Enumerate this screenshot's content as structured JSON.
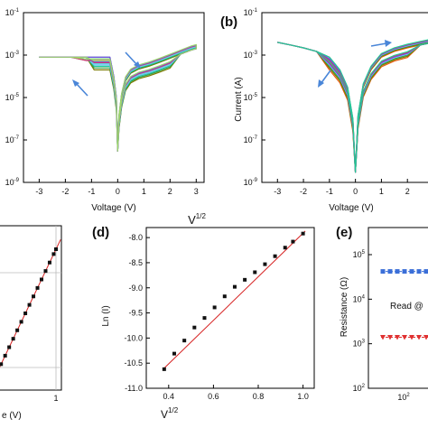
{
  "chart_data": [
    {
      "panel": "a",
      "type": "line",
      "x_scale": "linear",
      "y_scale": "log",
      "xlabel": "Voltage (V)",
      "ylabel": "",
      "xlim": [
        -3.6,
        3.3
      ],
      "ylim": [
        1e-09,
        0.1
      ],
      "xticks": [
        "-3",
        "-2",
        "-1",
        "0",
        "1",
        "2",
        "3"
      ],
      "yticks": [
        {
          "base": "10",
          "exp": "-1"
        },
        {
          "base": "10",
          "exp": "-3"
        },
        {
          "base": "10",
          "exp": "-5"
        },
        {
          "base": "10",
          "exp": "-7"
        },
        {
          "base": "10",
          "exp": "-9"
        }
      ],
      "series_colors": [
        "#7a7a00",
        "#2f9e44",
        "#20c997",
        "#74c0fc",
        "#5bd6e0",
        "#d6336c",
        "#7048e8",
        "#9cd66a"
      ],
      "sweep": {
        "x": [
          -3,
          -2.4,
          -1.8,
          -1.2,
          -0.9,
          -0.7,
          -0.5,
          -0.3,
          -0.15,
          -0.05,
          0,
          0.05,
          0.15,
          0.3,
          0.5,
          0.8,
          1.2,
          1.6,
          2,
          2.4,
          2.8,
          3
        ],
        "y": [
          0.0008,
          0.0008,
          0.0008,
          0.0008,
          0.0008,
          0.0008,
          0.0008,
          0.0008,
          0.0001,
          1e-05,
          3e-08,
          1e-06,
          1e-05,
          6e-05,
          0.00014,
          0.00022,
          0.0003,
          0.00045,
          0.0007,
          0.0011,
          0.0017,
          0.002
        ]
      },
      "annotations": [
        "arrow-blue-right",
        "arrow-blue-left"
      ]
    },
    {
      "panel": "b",
      "type": "line",
      "x_scale": "linear",
      "y_scale": "log",
      "xlabel": "Voltage (V)",
      "ylabel": "Current (A)",
      "xlim": [
        -3.6,
        3
      ],
      "ylim": [
        1e-09,
        0.1
      ],
      "xticks": [
        "-3",
        "-2",
        "-1",
        "0",
        "1",
        "2",
        "3"
      ],
      "yticks": [
        {
          "base": "10",
          "exp": "-1"
        },
        {
          "base": "10",
          "exp": "-3"
        },
        {
          "base": "10",
          "exp": "-5"
        },
        {
          "base": "10",
          "exp": "-7"
        },
        {
          "base": "10",
          "exp": "-9"
        }
      ],
      "series_colors": [
        "#e8590c",
        "#7a7a00",
        "#2f9e44",
        "#74c0fc",
        "#7048e8",
        "#d6336c",
        "#20c997"
      ],
      "sweep": {
        "x": [
          -3,
          -2.5,
          -2,
          -1.5,
          -1,
          -0.6,
          -0.3,
          -0.1,
          0,
          0.1,
          0.3,
          0.6,
          1,
          1.5,
          2,
          2.5,
          3
        ],
        "y": [
          0.004,
          0.003,
          0.0022,
          0.0015,
          0.0008,
          0.0002,
          3e-05,
          1e-06,
          3e-09,
          1e-06,
          3e-05,
          0.0002,
          0.0008,
          0.0015,
          0.0022,
          0.003,
          0.004
        ]
      },
      "annotations": [
        "arrow-blue-right",
        "arrow-blue-left"
      ]
    },
    {
      "panel": "c",
      "type": "scatter",
      "xlabel": "e (V)",
      "xticks": [
        "1"
      ],
      "points": {
        "x": [
          0.05,
          0.12,
          0.19,
          0.26,
          0.33,
          0.4,
          0.47,
          0.54,
          0.61,
          0.68,
          0.75,
          0.82,
          0.89,
          0.96,
          1.0
        ],
        "y": [
          0.05,
          0.12,
          0.19,
          0.26,
          0.33,
          0.4,
          0.47,
          0.54,
          0.61,
          0.68,
          0.75,
          0.82,
          0.89,
          0.96,
          1.0
        ]
      }
    },
    {
      "panel": "d",
      "type": "scatter",
      "title": "V^1/2",
      "title_base": "V",
      "title_sup": "1/2",
      "xlabel_base": "V",
      "xlabel_sup": "1/2",
      "ylabel": "Ln (I)",
      "xlim": [
        0.3,
        1.05
      ],
      "ylim": [
        -11.0,
        -7.8
      ],
      "xticks": [
        "0.4",
        "0.6",
        "0.8",
        "1.0"
      ],
      "yticks": [
        "-8.0",
        "-8.5",
        "-9.0",
        "-9.5",
        "-10.0",
        "-10.5",
        "-11.0"
      ],
      "points": {
        "x": [
          0.38,
          0.425,
          0.47,
          0.515,
          0.56,
          0.605,
          0.65,
          0.695,
          0.74,
          0.785,
          0.83,
          0.875,
          0.92,
          0.955,
          1.0
        ],
        "y": [
          -10.62,
          -10.31,
          -10.05,
          -9.79,
          -9.6,
          -9.39,
          -9.17,
          -8.98,
          -8.84,
          -8.69,
          -8.53,
          -8.37,
          -8.2,
          -8.08,
          -7.92
        ]
      },
      "fit": {
        "x": [
          0.38,
          1.01
        ],
        "y": [
          -10.6,
          -7.87
        ]
      }
    },
    {
      "panel": "e",
      "type": "scatter",
      "ylabel": "Resistance (Ω)",
      "annotation": "Read @",
      "yticks": [
        {
          "base": "10",
          "exp": "5"
        },
        {
          "base": "10",
          "exp": "4"
        },
        {
          "base": "10",
          "exp": "3"
        },
        {
          "base": "10",
          "exp": "2"
        }
      ],
      "xticks": [
        {
          "base": "10",
          "exp": "2"
        }
      ],
      "series": [
        {
          "color": "#3b6fd8",
          "marker": "square",
          "values": [
            42000,
            42000,
            42000,
            42000,
            42000,
            42000,
            42000,
            42000
          ]
        },
        {
          "color": "#e03131",
          "marker": "triangle-down",
          "values": [
            1400,
            1400,
            1400,
            1400,
            1400,
            1400,
            1400,
            1400
          ]
        }
      ]
    }
  ],
  "labels": {
    "b": "(b)",
    "d": "(d)",
    "e": "(e)"
  }
}
